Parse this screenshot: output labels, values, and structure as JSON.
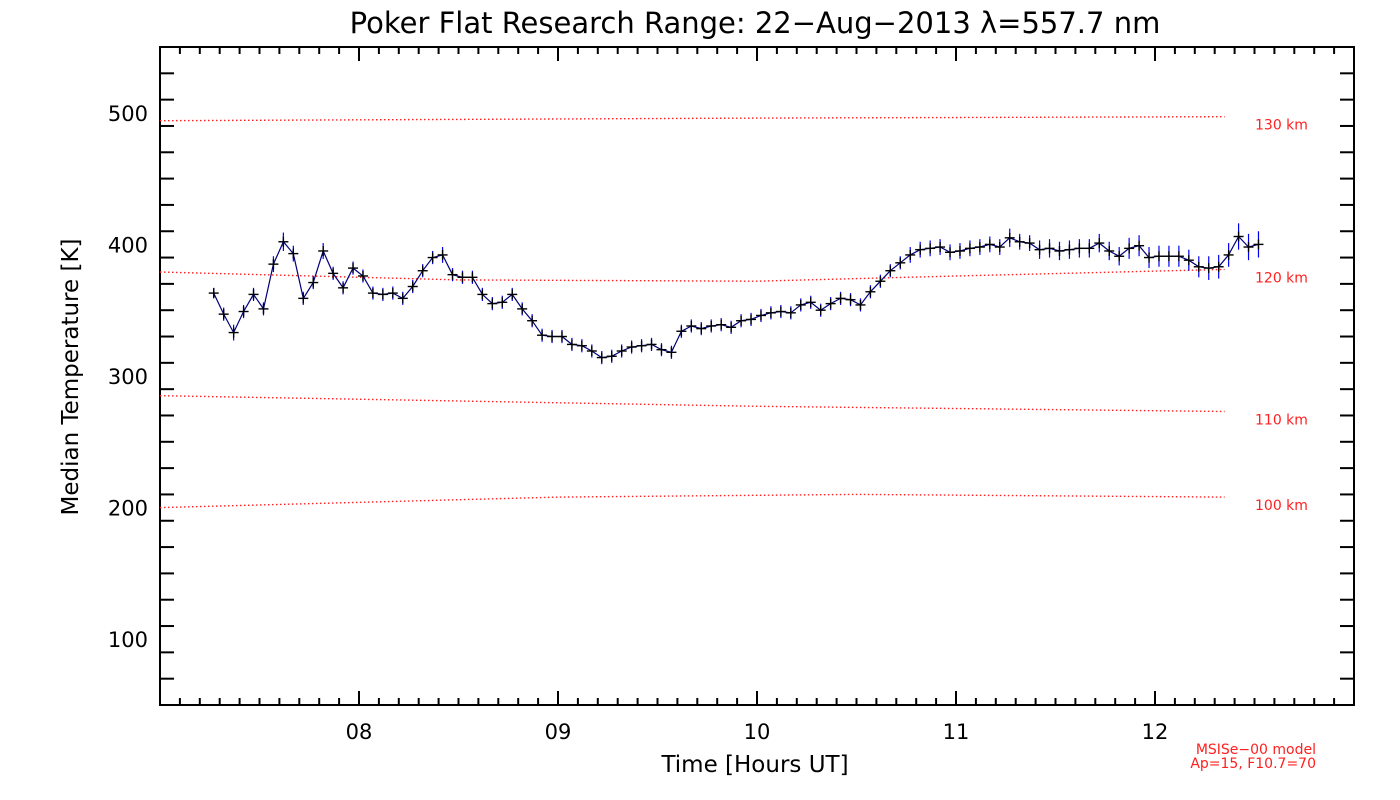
{
  "chart_data": {
    "type": "line",
    "title": "Poker Flat Research Range: 22−Aug−2013 λ=557.7 nm",
    "xlabel": "Time [Hours UT]",
    "ylabel": "Median Temperature [K]",
    "xlim": [
      7.0,
      13.0
    ],
    "ylim": [
      50,
      550
    ],
    "xticks": [
      8,
      9,
      10,
      11,
      12
    ],
    "xtick_labels": [
      "08",
      "09",
      "10",
      "11",
      "12"
    ],
    "yticks": [
      100,
      200,
      300,
      400,
      500
    ],
    "ytick_labels": [
      "100",
      "200",
      "300",
      "400",
      "500"
    ],
    "grid": false,
    "series": [
      {
        "color": "#00007a",
        "errorbar_color": "#0000ee",
        "marker": "plus",
        "x": [
          7.27,
          7.32,
          7.37,
          7.42,
          7.47,
          7.52,
          7.57,
          7.62,
          7.67,
          7.72,
          7.77,
          7.82,
          7.87,
          7.92,
          7.97,
          8.02,
          8.07,
          8.12,
          8.17,
          8.22,
          8.27,
          8.32,
          8.37,
          8.42,
          8.47,
          8.52,
          8.57,
          8.62,
          8.67,
          8.72,
          8.77,
          8.82,
          8.87,
          8.92,
          8.97,
          9.02,
          9.07,
          9.12,
          9.17,
          9.22,
          9.27,
          9.32,
          9.37,
          9.42,
          9.47,
          9.52,
          9.57,
          9.62,
          9.67,
          9.72,
          9.77,
          9.82,
          9.87,
          9.92,
          9.97,
          10.02,
          10.07,
          10.12,
          10.17,
          10.22,
          10.27,
          10.32,
          10.37,
          10.42,
          10.47,
          10.52,
          10.57,
          10.62,
          10.67,
          10.72,
          10.77,
          10.82,
          10.87,
          10.92,
          10.97,
          11.02,
          11.07,
          11.12,
          11.17,
          11.22,
          11.27,
          11.32,
          11.37,
          11.42,
          11.47,
          11.52,
          11.57,
          11.62,
          11.67,
          11.72,
          11.77,
          11.82,
          11.87,
          11.92,
          11.97,
          12.02,
          12.07,
          12.12,
          12.17,
          12.22,
          12.27,
          12.32,
          12.37,
          12.42,
          12.47,
          12.52
        ],
        "y": [
          363,
          347,
          333,
          349,
          362,
          351,
          385,
          402,
          393,
          359,
          371,
          395,
          378,
          367,
          382,
          376,
          363,
          362,
          363,
          359,
          368,
          380,
          390,
          392,
          377,
          375,
          375,
          362,
          355,
          356,
          362,
          351,
          342,
          331,
          330,
          330,
          324,
          323,
          319,
          314,
          315,
          319,
          322,
          323,
          324,
          320,
          318,
          334,
          338,
          336,
          338,
          339,
          337,
          342,
          343,
          346,
          348,
          349,
          348,
          354,
          356,
          350,
          355,
          359,
          358,
          354,
          364,
          372,
          380,
          386,
          392,
          396,
          397,
          398,
          394,
          395,
          397,
          398,
          400,
          398,
          405,
          402,
          401,
          396,
          397,
          395,
          396,
          397,
          397,
          401,
          395,
          391,
          397,
          399,
          390,
          391,
          391,
          391,
          388,
          383,
          382,
          383,
          392,
          406,
          398,
          400
        ],
        "err": [
          4,
          5,
          6,
          5,
          5,
          5,
          6,
          7,
          6,
          5,
          5,
          6,
          5,
          5,
          5,
          5,
          5,
          5,
          5,
          5,
          5,
          5,
          5,
          6,
          5,
          5,
          5,
          5,
          5,
          5,
          5,
          5,
          5,
          5,
          5,
          5,
          5,
          5,
          5,
          5,
          5,
          5,
          5,
          5,
          5,
          5,
          5,
          5,
          5,
          5,
          5,
          5,
          5,
          5,
          5,
          5,
          5,
          5,
          5,
          5,
          5,
          5,
          5,
          5,
          5,
          5,
          5,
          5,
          5,
          5,
          6,
          6,
          6,
          6,
          6,
          6,
          6,
          6,
          6,
          6,
          7,
          6,
          6,
          7,
          7,
          7,
          7,
          7,
          7,
          7,
          7,
          7,
          8,
          8,
          8,
          8,
          8,
          8,
          8,
          8,
          9,
          9,
          9,
          10,
          10,
          10
        ]
      }
    ],
    "model_lines": [
      {
        "label": "130 km",
        "color": "#ff2020",
        "x": [
          7.0,
          10.0,
          12.35
        ],
        "y": [
          494,
          496,
          497
        ]
      },
      {
        "label": "120 km",
        "color": "#ff2020",
        "x": [
          7.0,
          8.5,
          10.0,
          11.0,
          12.35
        ],
        "y": [
          379,
          373,
          372,
          376,
          381
        ]
      },
      {
        "label": "110 km",
        "color": "#ff2020",
        "x": [
          7.0,
          10.0,
          12.35
        ],
        "y": [
          285,
          277,
          273
        ]
      },
      {
        "label": "100 km",
        "color": "#ff2020",
        "x": [
          7.0,
          9.0,
          10.5,
          12.35
        ],
        "y": [
          200,
          208,
          210,
          208
        ]
      }
    ],
    "annotations": [
      "MSISe−00 model",
      "Ap=15, F10.7=70"
    ],
    "annotation_color": "#ff2020"
  }
}
